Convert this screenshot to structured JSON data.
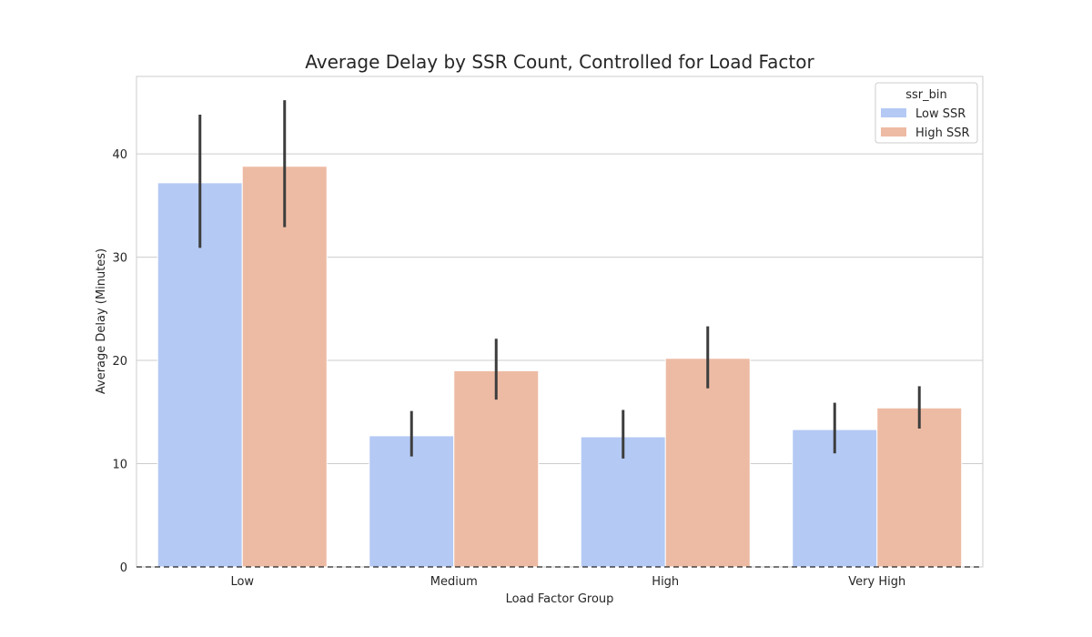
{
  "chart_data": {
    "type": "bar",
    "title": "Average Delay by SSR Count, Controlled for Load Factor",
    "xlabel": "Load Factor Group",
    "ylabel": "Average Delay (Minutes)",
    "categories": [
      "Low",
      "Medium",
      "High",
      "Very High"
    ],
    "ylim": [
      0,
      47.5
    ],
    "yticks": [
      0,
      10,
      20,
      30,
      40
    ],
    "grid": true,
    "reference_line": 0,
    "legend": {
      "title": "ssr_bin",
      "placement": "top-right"
    },
    "series": [
      {
        "name": "Low SSR",
        "color": "#b4c9f4",
        "values": [
          37.2,
          12.7,
          12.6,
          13.3
        ],
        "ci_low": [
          30.9,
          10.7,
          10.5,
          11.0
        ],
        "ci_high": [
          43.8,
          15.1,
          15.2,
          15.9
        ]
      },
      {
        "name": "High SSR",
        "color": "#edbba4",
        "values": [
          38.8,
          19.0,
          20.2,
          15.4
        ],
        "ci_low": [
          32.9,
          16.2,
          17.3,
          13.4
        ],
        "ci_high": [
          45.2,
          22.1,
          23.3,
          17.5
        ]
      }
    ]
  }
}
